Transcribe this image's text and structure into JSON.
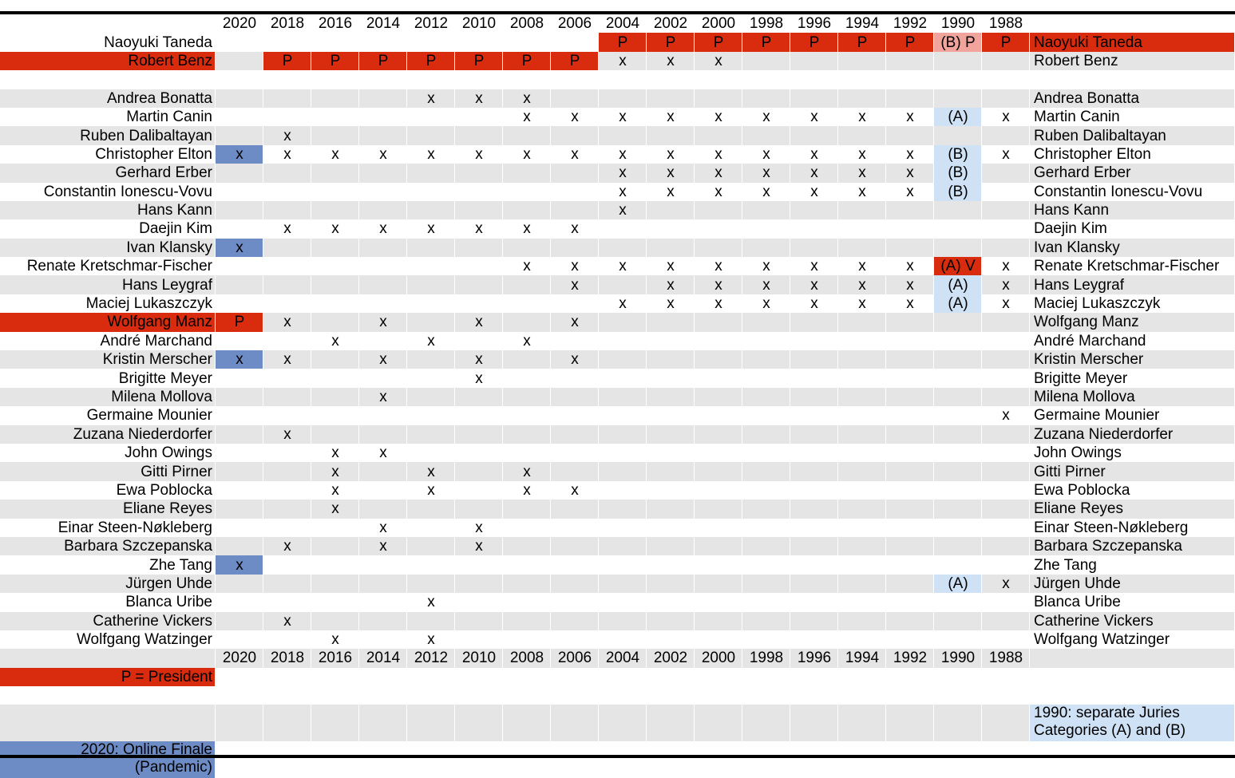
{
  "years": [
    "2020",
    "2018",
    "2016",
    "2014",
    "2012",
    "2010",
    "2008",
    "2006",
    "2004",
    "2002",
    "2000",
    "1998",
    "1996",
    "1994",
    "1992",
    "1990",
    "1988"
  ],
  "colors": {
    "president": "#d92b0e",
    "online": "#6d8bc4",
    "separate": "#cfe2f5",
    "b_president": "#f0a49c",
    "row_gray": "#e5e5e5"
  },
  "rows": [
    {
      "name": "Naoyuki Taneda",
      "right": "Naoyuki Taneda",
      "name_hl": "",
      "right_hl": "red",
      "cells": [
        "",
        "",
        "",
        "",
        "",
        "",
        "",
        "",
        "P",
        "P",
        "P",
        "P",
        "P",
        "P",
        "P",
        "(B) P",
        "P"
      ],
      "hl": [
        "",
        "",
        "",
        "",
        "",
        "",
        "",
        "",
        "red",
        "red",
        "red",
        "red",
        "red",
        "red",
        "red",
        "pink",
        "red"
      ]
    },
    {
      "name": "Robert Benz",
      "right": "Robert Benz",
      "name_hl": "red",
      "right_hl": "",
      "cells": [
        "",
        "P",
        "P",
        "P",
        "P",
        "P",
        "P",
        "P",
        "x",
        "x",
        "x",
        "",
        "",
        "",
        "",
        "",
        ""
      ],
      "hl": [
        "",
        "red",
        "red",
        "red",
        "red",
        "red",
        "red",
        "red",
        "",
        "",
        "",
        "",
        "",
        "",
        "",
        "",
        ""
      ]
    },
    {
      "name": "",
      "right": "",
      "name_hl": "",
      "right_hl": "",
      "cells": [
        "",
        "",
        "",
        "",
        "",
        "",
        "",
        "",
        "",
        "",
        "",
        "",
        "",
        "",
        "",
        "",
        ""
      ],
      "hl": []
    },
    {
      "name": "Andrea Bonatta",
      "right": "Andrea Bonatta",
      "name_hl": "",
      "right_hl": "",
      "cells": [
        "",
        "",
        "",
        "",
        "x",
        "x",
        "x",
        "",
        "",
        "",
        "",
        "",
        "",
        "",
        "",
        "",
        ""
      ],
      "hl": []
    },
    {
      "name": "Martin Canin",
      "right": "Martin Canin",
      "name_hl": "",
      "right_hl": "",
      "cells": [
        "",
        "",
        "",
        "",
        "",
        "",
        "x",
        "x",
        "x",
        "x",
        "x",
        "x",
        "x",
        "x",
        "x",
        "(A)",
        "x"
      ],
      "hl": [
        "",
        "",
        "",
        "",
        "",
        "",
        "",
        "",
        "",
        "",
        "",
        "",
        "",
        "",
        "",
        "light",
        ""
      ]
    },
    {
      "name": "Ruben Dalibaltayan",
      "right": "Ruben Dalibaltayan",
      "name_hl": "",
      "right_hl": "",
      "cells": [
        "",
        "x",
        "",
        "",
        "",
        "",
        "",
        "",
        "",
        "",
        "",
        "",
        "",
        "",
        "",
        "",
        ""
      ],
      "hl": []
    },
    {
      "name": "Christopher Elton",
      "right": "Christopher Elton",
      "name_hl": "",
      "right_hl": "",
      "cells": [
        "x",
        "x",
        "x",
        "x",
        "x",
        "x",
        "x",
        "x",
        "x",
        "x",
        "x",
        "x",
        "x",
        "x",
        "x",
        "(B)",
        "x"
      ],
      "hl": [
        "blue",
        "",
        "",
        "",
        "",
        "",
        "",
        "",
        "",
        "",
        "",
        "",
        "",
        "",
        "",
        "light",
        ""
      ]
    },
    {
      "name": "Gerhard Erber",
      "right": "Gerhard Erber",
      "name_hl": "",
      "right_hl": "",
      "cells": [
        "",
        "",
        "",
        "",
        "",
        "",
        "",
        "",
        "x",
        "x",
        "x",
        "x",
        "x",
        "x",
        "x",
        "(B)",
        ""
      ],
      "hl": [
        "",
        "",
        "",
        "",
        "",
        "",
        "",
        "",
        "",
        "",
        "",
        "",
        "",
        "",
        "",
        "light",
        ""
      ]
    },
    {
      "name": "Constantin Ionescu-Vovu",
      "right": "Constantin Ionescu-Vovu",
      "name_hl": "",
      "right_hl": "",
      "cells": [
        "",
        "",
        "",
        "",
        "",
        "",
        "",
        "",
        "x",
        "x",
        "x",
        "x",
        "x",
        "x",
        "x",
        "(B)",
        ""
      ],
      "hl": [
        "",
        "",
        "",
        "",
        "",
        "",
        "",
        "",
        "",
        "",
        "",
        "",
        "",
        "",
        "",
        "light",
        ""
      ]
    },
    {
      "name": "Hans Kann",
      "right": "Hans Kann",
      "name_hl": "",
      "right_hl": "",
      "cells": [
        "",
        "",
        "",
        "",
        "",
        "",
        "",
        "",
        "x",
        "",
        "",
        "",
        "",
        "",
        "",
        "",
        ""
      ],
      "hl": []
    },
    {
      "name": "Daejin Kim",
      "right": "Daejin Kim",
      "name_hl": "",
      "right_hl": "",
      "cells": [
        "",
        "x",
        "x",
        "x",
        "x",
        "x",
        "x",
        "x",
        "",
        "",
        "",
        "",
        "",
        "",
        "",
        "",
        ""
      ],
      "hl": []
    },
    {
      "name": "Ivan Klansky",
      "right": "Ivan Klansky",
      "name_hl": "",
      "right_hl": "",
      "cells": [
        "x",
        "",
        "",
        "",
        "",
        "",
        "",
        "",
        "",
        "",
        "",
        "",
        "",
        "",
        "",
        "",
        ""
      ],
      "hl": [
        "blue"
      ]
    },
    {
      "name": "Renate Kretschmar-Fischer",
      "right": "Renate Kretschmar-Fischer",
      "name_hl": "",
      "right_hl": "",
      "cells": [
        "",
        "",
        "",
        "",
        "",
        "",
        "x",
        "x",
        "x",
        "x",
        "x",
        "x",
        "x",
        "x",
        "x",
        "(A) V",
        "x"
      ],
      "hl": [
        "",
        "",
        "",
        "",
        "",
        "",
        "",
        "",
        "",
        "",
        "",
        "",
        "",
        "",
        "",
        "red",
        ""
      ]
    },
    {
      "name": "Hans Leygraf",
      "right": "Hans Leygraf",
      "name_hl": "",
      "right_hl": "",
      "cells": [
        "",
        "",
        "",
        "",
        "",
        "",
        "",
        "x",
        "",
        "x",
        "x",
        "x",
        "x",
        "x",
        "x",
        "(A)",
        "x"
      ],
      "hl": [
        "",
        "",
        "",
        "",
        "",
        "",
        "",
        "",
        "",
        "",
        "",
        "",
        "",
        "",
        "",
        "light",
        ""
      ]
    },
    {
      "name": "Maciej Lukaszczyk",
      "right": "Maciej Lukaszczyk",
      "name_hl": "",
      "right_hl": "",
      "cells": [
        "",
        "",
        "",
        "",
        "",
        "",
        "",
        "",
        "x",
        "x",
        "x",
        "x",
        "x",
        "x",
        "x",
        "(A)",
        "x"
      ],
      "hl": [
        "",
        "",
        "",
        "",
        "",
        "",
        "",
        "",
        "",
        "",
        "",
        "",
        "",
        "",
        "",
        "light",
        ""
      ]
    },
    {
      "name": "Wolfgang Manz",
      "right": "Wolfgang Manz",
      "name_hl": "red",
      "right_hl": "",
      "cells": [
        "P",
        "x",
        "",
        "x",
        "",
        "x",
        "",
        "x",
        "",
        "",
        "",
        "",
        "",
        "",
        "",
        "",
        ""
      ],
      "hl": [
        "red"
      ]
    },
    {
      "name": "André Marchand",
      "right": "André Marchand",
      "name_hl": "",
      "right_hl": "",
      "cells": [
        "",
        "",
        "x",
        "",
        "x",
        "",
        "x",
        "",
        "",
        "",
        "",
        "",
        "",
        "",
        "",
        "",
        ""
      ],
      "hl": []
    },
    {
      "name": "Kristin Merscher",
      "right": "Kristin Merscher",
      "name_hl": "",
      "right_hl": "",
      "cells": [
        "x",
        "x",
        "",
        "x",
        "",
        "x",
        "",
        "x",
        "",
        "",
        "",
        "",
        "",
        "",
        "",
        "",
        ""
      ],
      "hl": [
        "blue"
      ]
    },
    {
      "name": "Brigitte Meyer",
      "right": "Brigitte Meyer",
      "name_hl": "",
      "right_hl": "",
      "cells": [
        "",
        "",
        "",
        "",
        "",
        "x",
        "",
        "",
        "",
        "",
        "",
        "",
        "",
        "",
        "",
        "",
        ""
      ],
      "hl": []
    },
    {
      "name": "Milena Mollova",
      "right": "Milena Mollova",
      "name_hl": "",
      "right_hl": "",
      "cells": [
        "",
        "",
        "",
        "x",
        "",
        "",
        "",
        "",
        "",
        "",
        "",
        "",
        "",
        "",
        "",
        "",
        ""
      ],
      "hl": []
    },
    {
      "name": "Germaine Mounier",
      "right": "Germaine Mounier",
      "name_hl": "",
      "right_hl": "",
      "cells": [
        "",
        "",
        "",
        "",
        "",
        "",
        "",
        "",
        "",
        "",
        "",
        "",
        "",
        "",
        "",
        "",
        "x"
      ],
      "hl": []
    },
    {
      "name": "Zuzana Niederdorfer",
      "right": "Zuzana Niederdorfer",
      "name_hl": "",
      "right_hl": "",
      "cells": [
        "",
        "x",
        "",
        "",
        "",
        "",
        "",
        "",
        "",
        "",
        "",
        "",
        "",
        "",
        "",
        "",
        ""
      ],
      "hl": []
    },
    {
      "name": "John Owings",
      "right": "John Owings",
      "name_hl": "",
      "right_hl": "",
      "cells": [
        "",
        "",
        "x",
        "x",
        "",
        "",
        "",
        "",
        "",
        "",
        "",
        "",
        "",
        "",
        "",
        "",
        ""
      ],
      "hl": []
    },
    {
      "name": "Gitti Pirner",
      "right": "Gitti Pirner",
      "name_hl": "",
      "right_hl": "",
      "cells": [
        "",
        "",
        "x",
        "",
        "x",
        "",
        "x",
        "",
        "",
        "",
        "",
        "",
        "",
        "",
        "",
        "",
        ""
      ],
      "hl": []
    },
    {
      "name": "Ewa Poblocka",
      "right": "Ewa Poblocka",
      "name_hl": "",
      "right_hl": "",
      "cells": [
        "",
        "",
        "x",
        "",
        "x",
        "",
        "x",
        "x",
        "",
        "",
        "",
        "",
        "",
        "",
        "",
        "",
        ""
      ],
      "hl": []
    },
    {
      "name": "Eliane Reyes",
      "right": "Eliane Reyes",
      "name_hl": "",
      "right_hl": "",
      "cells": [
        "",
        "",
        "x",
        "",
        "",
        "",
        "",
        "",
        "",
        "",
        "",
        "",
        "",
        "",
        "",
        "",
        ""
      ],
      "hl": []
    },
    {
      "name": "Einar Steen-Nøkleberg",
      "right": "Einar Steen-Nøkleberg",
      "name_hl": "",
      "right_hl": "",
      "cells": [
        "",
        "",
        "",
        "x",
        "",
        "x",
        "",
        "",
        "",
        "",
        "",
        "",
        "",
        "",
        "",
        "",
        ""
      ],
      "hl": []
    },
    {
      "name": "Barbara Szczepanska",
      "right": "Barbara Szczepanska",
      "name_hl": "",
      "right_hl": "",
      "cells": [
        "",
        "x",
        "",
        "x",
        "",
        "x",
        "",
        "",
        "",
        "",
        "",
        "",
        "",
        "",
        "",
        "",
        ""
      ],
      "hl": []
    },
    {
      "name": "Zhe Tang",
      "right": "Zhe Tang",
      "name_hl": "",
      "right_hl": "",
      "cells": [
        "x",
        "",
        "",
        "",
        "",
        "",
        "",
        "",
        "",
        "",
        "",
        "",
        "",
        "",
        "",
        "",
        ""
      ],
      "hl": [
        "blue"
      ]
    },
    {
      "name": "Jürgen Uhde",
      "right": "Jürgen Uhde",
      "name_hl": "",
      "right_hl": "",
      "cells": [
        "",
        "",
        "",
        "",
        "",
        "",
        "",
        "",
        "",
        "",
        "",
        "",
        "",
        "",
        "",
        "(A)",
        "x"
      ],
      "hl": [
        "",
        "",
        "",
        "",
        "",
        "",
        "",
        "",
        "",
        "",
        "",
        "",
        "",
        "",
        "",
        "light",
        ""
      ]
    },
    {
      "name": "Blanca Uribe",
      "right": "Blanca Uribe",
      "name_hl": "",
      "right_hl": "",
      "cells": [
        "",
        "",
        "",
        "",
        "x",
        "",
        "",
        "",
        "",
        "",
        "",
        "",
        "",
        "",
        "",
        "",
        ""
      ],
      "hl": []
    },
    {
      "name": "Catherine Vickers",
      "right": "Catherine Vickers",
      "name_hl": "",
      "right_hl": "",
      "cells": [
        "",
        "x",
        "",
        "",
        "",
        "",
        "",
        "",
        "",
        "",
        "",
        "",
        "",
        "",
        "",
        "",
        ""
      ],
      "hl": []
    },
    {
      "name": "Wolfgang Watzinger",
      "right": "Wolfgang Watzinger",
      "name_hl": "",
      "right_hl": "",
      "cells": [
        "",
        "",
        "x",
        "",
        "x",
        "",
        "",
        "",
        "",
        "",
        "",
        "",
        "",
        "",
        "",
        "",
        ""
      ],
      "hl": []
    }
  ],
  "legend": {
    "president": "P = President",
    "separate": "1990: separate Juries Categories (A) and (B)",
    "online": "2020: Online Finale (Pandemic)"
  }
}
